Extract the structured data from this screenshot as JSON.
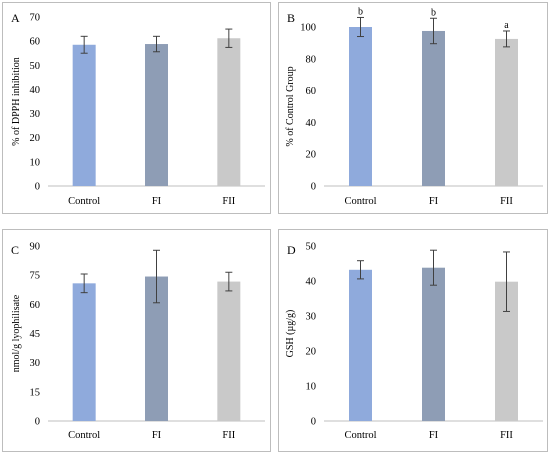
{
  "colors": {
    "control": "#8faadc",
    "fi": "#8e9db5",
    "fii": "#c9c9c9",
    "axis": "#bfbfbf",
    "error_bar": "#404040"
  },
  "chart_data": [
    {
      "type": "bar",
      "panel": "A",
      "title": "",
      "ylabel": "% of DPPH inhibition",
      "xlabel": "",
      "categories": [
        "Control",
        "FI",
        "FII"
      ],
      "values": [
        58.5,
        58.8,
        61.2
      ],
      "errors": [
        3.5,
        3.2,
        3.8
      ],
      "ylim": [
        0,
        70
      ],
      "yticks": [
        0,
        10,
        20,
        30,
        40,
        50,
        60,
        70
      ],
      "significance": [
        "",
        "",
        ""
      ],
      "grid": false,
      "legend": "none"
    },
    {
      "type": "bar",
      "panel": "B",
      "title": "",
      "ylabel": "% of Control Group",
      "xlabel": "",
      "categories": [
        "Control",
        "FI",
        "FII"
      ],
      "values": [
        100,
        97.5,
        92.5
      ],
      "errors": [
        6,
        8,
        5
      ],
      "ylim": [
        0,
        100
      ],
      "yticks": [
        0,
        20,
        40,
        60,
        80,
        100
      ],
      "significance": [
        "b",
        "b",
        "a"
      ],
      "grid": false,
      "legend": "none"
    },
    {
      "type": "bar",
      "panel": "C",
      "title": "",
      "ylabel": "nmol/g lyophilisate",
      "xlabel": "",
      "categories": [
        "Control",
        "FI",
        "FII"
      ],
      "values": [
        70.8,
        74.3,
        71.7
      ],
      "errors": [
        4.8,
        13.5,
        4.8
      ],
      "ylim": [
        0,
        90
      ],
      "yticks": [
        0,
        15,
        30,
        45,
        60,
        75,
        90
      ],
      "significance": [
        "",
        "",
        ""
      ],
      "grid": false,
      "legend": "none"
    },
    {
      "type": "bar",
      "panel": "D",
      "title": "",
      "ylabel": "GSH (µg/g)",
      "xlabel": "",
      "categories": [
        "Control",
        "FI",
        "FII"
      ],
      "values": [
        43.2,
        43.8,
        39.8
      ],
      "errors": [
        2.6,
        5,
        8.5
      ],
      "ylim": [
        0,
        50
      ],
      "yticks": [
        0,
        10,
        20,
        30,
        40,
        50
      ],
      "significance": [
        "",
        "",
        ""
      ],
      "grid": false,
      "legend": "none"
    }
  ]
}
